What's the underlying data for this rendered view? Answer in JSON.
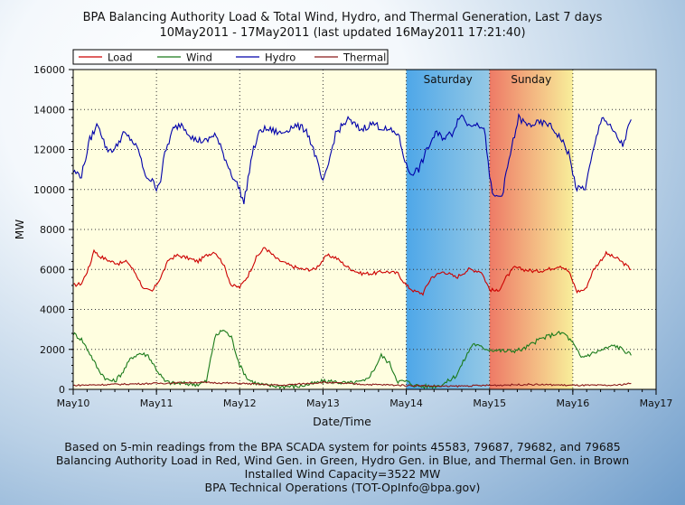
{
  "title": {
    "line1": "BPA Balancing Authority Load & Total Wind, Hydro, and Thermal Generation, Last 7 days",
    "line2": "10May2011 - 17May2011 (last updated 16May2011 17:21:40)"
  },
  "footer": {
    "line1": "Based on 5-min readings from the BPA SCADA system for points 45583, 79687, 79682, and 79685",
    "line2": "Balancing Authority Load in Red, Wind Gen. in Green, Hydro Gen. in Blue, and Thermal Gen. in Brown",
    "line3": "Installed Wind Capacity=3522 MW",
    "line4": "BPA Technical Operations (TOT-OpInfo@bpa.gov)"
  },
  "colors": {
    "plot_bg": "#fffee0",
    "saturday_band": "#4ea7e8",
    "sunday_band_start": "#ee7a66",
    "sunday_band_end": "#f8ee9a"
  },
  "chart_data": {
    "type": "line",
    "xlabel": "Date/Time",
    "ylabel": "MW",
    "ylim": [
      0,
      16000
    ],
    "yticks": [
      0,
      2000,
      4000,
      6000,
      8000,
      10000,
      12000,
      14000,
      16000
    ],
    "xlim": [
      0,
      7
    ],
    "xticks": [
      {
        "x": 0,
        "label": "May10"
      },
      {
        "x": 1,
        "label": "May11"
      },
      {
        "x": 2,
        "label": "May12"
      },
      {
        "x": 3,
        "label": "May13"
      },
      {
        "x": 4,
        "label": "May14"
      },
      {
        "x": 5,
        "label": "May15"
      },
      {
        "x": 6,
        "label": "May16"
      },
      {
        "x": 7,
        "label": "May17"
      }
    ],
    "grid": true,
    "legend_position": "top",
    "weekend_bands": [
      {
        "label": "Saturday",
        "x_start": 4,
        "x_end": 5
      },
      {
        "label": "Sunday",
        "x_start": 5,
        "x_end": 6
      }
    ],
    "series": [
      {
        "name": "Load",
        "color": "#cc0000",
        "x": [
          0,
          0.1,
          0.2,
          0.25,
          0.3,
          0.45,
          0.55,
          0.65,
          0.75,
          0.85,
          0.95,
          1.05,
          1.15,
          1.25,
          1.35,
          1.5,
          1.6,
          1.7,
          1.8,
          1.9,
          2.0,
          2.1,
          2.2,
          2.3,
          2.45,
          2.6,
          2.75,
          2.9,
          3.05,
          3.15,
          3.3,
          3.45,
          3.6,
          3.75,
          3.9,
          4.0,
          4.1,
          4.2,
          4.3,
          4.45,
          4.6,
          4.75,
          4.9,
          5.0,
          5.1,
          5.2,
          5.3,
          5.4,
          5.55,
          5.7,
          5.85,
          5.95,
          6.05,
          6.15,
          6.25,
          6.4,
          6.55,
          6.7
        ],
        "y": [
          5200,
          5300,
          6200,
          7000,
          6700,
          6400,
          6300,
          6400,
          5800,
          5000,
          4900,
          5600,
          6500,
          6700,
          6600,
          6400,
          6700,
          6900,
          6300,
          5200,
          5100,
          5700,
          6600,
          7100,
          6500,
          6200,
          6000,
          6000,
          6700,
          6600,
          6100,
          5800,
          5800,
          5900,
          5800,
          5200,
          4900,
          4800,
          5600,
          5900,
          5600,
          6000,
          5900,
          5000,
          4900,
          5600,
          6100,
          6000,
          5900,
          6000,
          6200,
          5900,
          4900,
          5000,
          6000,
          6800,
          6500,
          6000
        ]
      },
      {
        "name": "Wind",
        "color": "#1a7a1a",
        "x": [
          0,
          0.1,
          0.2,
          0.3,
          0.4,
          0.5,
          0.6,
          0.7,
          0.8,
          0.9,
          1.0,
          1.1,
          1.2,
          1.3,
          1.5,
          1.6,
          1.7,
          1.8,
          1.9,
          2.0,
          2.1,
          2.2,
          2.3,
          2.5,
          2.7,
          2.9,
          3.0,
          3.1,
          3.3,
          3.5,
          3.6,
          3.7,
          3.8,
          3.9,
          4.0,
          4.1,
          4.2,
          4.3,
          4.4,
          4.5,
          4.6,
          4.7,
          4.8,
          4.9,
          5.0,
          5.2,
          5.4,
          5.6,
          5.8,
          5.9,
          6.0,
          6.1,
          6.3,
          6.5,
          6.6,
          6.7
        ],
        "y": [
          2800,
          2500,
          1800,
          1000,
          500,
          400,
          900,
          1600,
          1800,
          1700,
          1000,
          400,
          300,
          300,
          250,
          400,
          2600,
          3000,
          2600,
          1200,
          500,
          300,
          200,
          150,
          150,
          300,
          400,
          400,
          300,
          400,
          900,
          1700,
          1300,
          400,
          400,
          200,
          150,
          150,
          200,
          400,
          700,
          1500,
          2300,
          2100,
          2000,
          1900,
          2000,
          2500,
          2800,
          2800,
          2300,
          1600,
          1900,
          2200,
          2000,
          1700
        ]
      },
      {
        "name": "Hydro",
        "color": "#0000aa",
        "x": [
          0,
          0.1,
          0.2,
          0.3,
          0.4,
          0.5,
          0.6,
          0.7,
          0.8,
          0.85,
          0.95,
          1.0,
          1.05,
          1.1,
          1.2,
          1.3,
          1.45,
          1.6,
          1.7,
          1.8,
          1.9,
          2.0,
          2.05,
          2.15,
          2.25,
          2.35,
          2.5,
          2.65,
          2.8,
          2.9,
          3.0,
          3.05,
          3.15,
          3.3,
          3.45,
          3.6,
          3.75,
          3.9,
          4.0,
          4.05,
          4.15,
          4.25,
          4.35,
          4.45,
          4.55,
          4.65,
          4.75,
          4.85,
          4.95,
          5.0,
          5.05,
          5.15,
          5.25,
          5.35,
          5.45,
          5.55,
          5.7,
          5.85,
          5.95,
          6.0,
          6.05,
          6.15,
          6.25,
          6.35,
          6.5,
          6.6,
          6.7
        ],
        "y": [
          10900,
          10700,
          12500,
          13300,
          12000,
          12000,
          12800,
          12500,
          11800,
          10800,
          10400,
          10100,
          10500,
          11800,
          13000,
          13300,
          12500,
          12400,
          12800,
          11800,
          10800,
          10000,
          9300,
          11800,
          13000,
          13000,
          12800,
          13200,
          13000,
          11800,
          10300,
          11000,
          12800,
          13500,
          13000,
          13300,
          13000,
          12800,
          11200,
          10800,
          11000,
          12000,
          12800,
          12600,
          12800,
          13800,
          13200,
          13400,
          12800,
          10500,
          9600,
          9700,
          11800,
          13600,
          13200,
          13300,
          13300,
          12600,
          11800,
          10800,
          10000,
          10100,
          12000,
          13700,
          12800,
          12200,
          13500
        ]
      },
      {
        "name": "Thermal",
        "color": "#8b1a1a",
        "x": [
          0,
          0.5,
          1.0,
          1.5,
          2.0,
          2.5,
          3.0,
          3.5,
          4.0,
          4.5,
          5.0,
          5.5,
          6.0,
          6.5,
          6.7
        ],
        "y": [
          200,
          250,
          300,
          350,
          300,
          200,
          350,
          250,
          200,
          150,
          200,
          250,
          200,
          200,
          300
        ]
      }
    ]
  }
}
